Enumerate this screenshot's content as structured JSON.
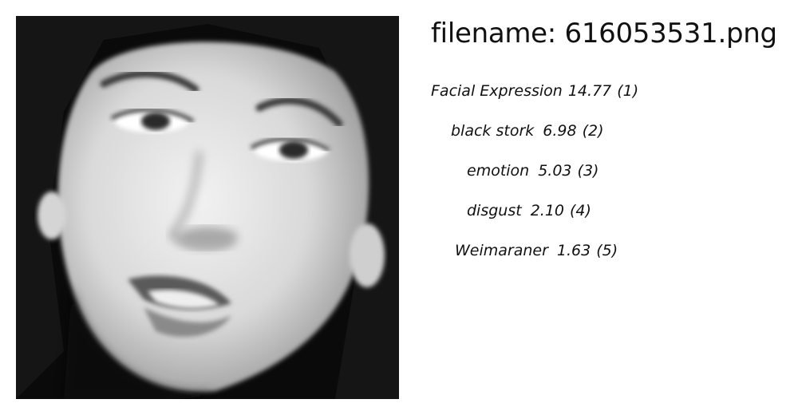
{
  "header": {
    "filename_prefix": "filename:",
    "filename": "616053531.png"
  },
  "predictions": [
    {
      "label": "Facial Expression",
      "score": "14.77",
      "rank": "(1)"
    },
    {
      "label": "black stork",
      "score": "6.98",
      "rank": "(2)"
    },
    {
      "label": "emotion",
      "score": "5.03",
      "rank": "(3)"
    },
    {
      "label": "disgust",
      "score": "2.10",
      "rank": "(4)"
    },
    {
      "label": "Weimaraner",
      "score": "1.63",
      "rank": "(5)"
    }
  ],
  "image": {
    "subject": "grayscale close-up photo of a woman's face"
  }
}
